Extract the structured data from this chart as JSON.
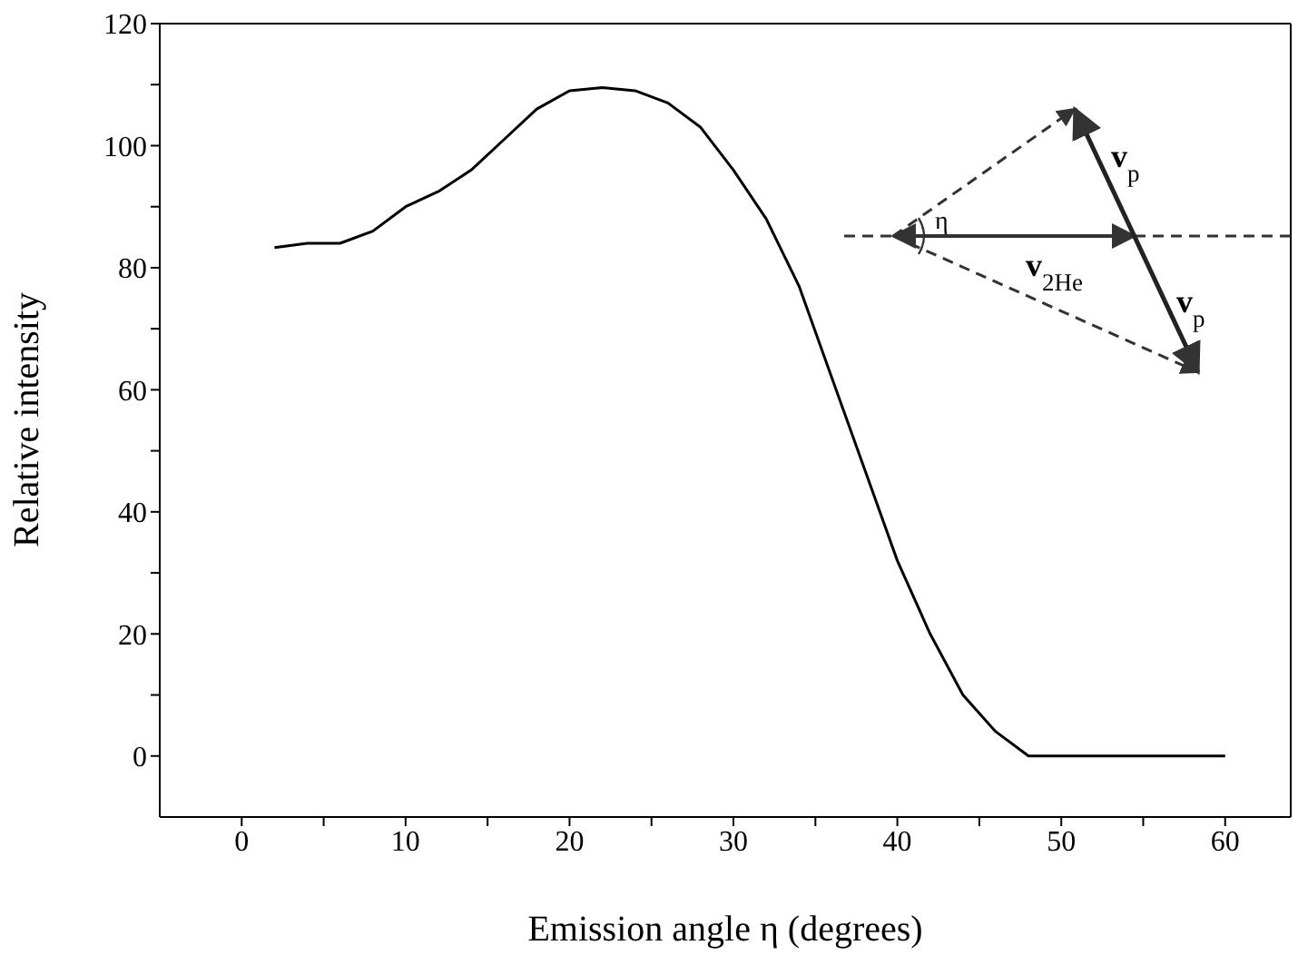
{
  "chart_data": {
    "type": "line",
    "xlabel": "Emission angle η (degrees)",
    "ylabel": "Relative intensity",
    "x": [
      2,
      4,
      6,
      8,
      10,
      12,
      14,
      16,
      18,
      20,
      22,
      24,
      26,
      28,
      30,
      32,
      34,
      36,
      38,
      40,
      42,
      44,
      46,
      48,
      50,
      60
    ],
    "series": [
      {
        "color": "#000000",
        "values": [
          83.3,
          84,
          84,
          86,
          90,
          92.5,
          96,
          101,
          106,
          109,
          109.5,
          109,
          107,
          103,
          96,
          88,
          77,
          62,
          47,
          32,
          20,
          10,
          4,
          0,
          0,
          0
        ]
      }
    ],
    "xlim": [
      -5,
      64
    ],
    "xticks": [
      0,
      {
        "value": 5,
        "label": null
      },
      10,
      {
        "value": 15,
        "label": null
      },
      20,
      {
        "value": 25,
        "label": null
      },
      30,
      {
        "value": 35,
        "label": null
      },
      40,
      {
        "value": 45,
        "label": null
      },
      50,
      {
        "value": 55,
        "label": null
      },
      60
    ],
    "ylim": [
      -10,
      120
    ],
    "yticks": [
      0,
      {
        "value": 10,
        "label": null
      },
      20,
      {
        "value": 30,
        "label": null
      },
      40,
      {
        "value": 50,
        "label": null
      },
      60,
      {
        "value": 70,
        "label": null
      },
      80,
      {
        "value": 90,
        "label": null
      },
      100,
      {
        "value": 110,
        "label": null
      },
      120
    ],
    "grid": false,
    "marker": "none",
    "line_style": "solid",
    "annotations": [
      "η",
      "v$_{2He}$",
      "v$_{p}$",
      "v$_{p}$"
    ]
  }
}
